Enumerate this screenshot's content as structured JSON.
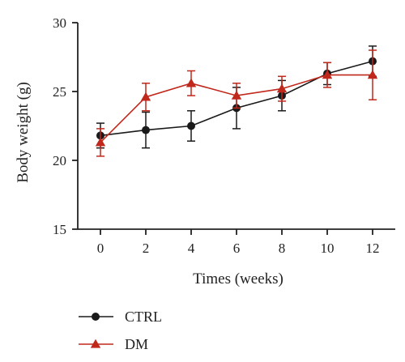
{
  "chart_data": {
    "type": "line",
    "title": "",
    "xlabel": "Times (weeks)",
    "ylabel": "Body weight (g)",
    "x": [
      0,
      2,
      4,
      6,
      8,
      10,
      12
    ],
    "xlim": [
      -1,
      13
    ],
    "ylim": [
      15,
      30
    ],
    "xticks": [
      "0",
      "2",
      "4",
      "6",
      "8",
      "10",
      "12"
    ],
    "yticks": [
      "15",
      "20",
      "25",
      "30"
    ],
    "grid": false,
    "legend_position": "bottom-left",
    "series": [
      {
        "name": "CTRL",
        "marker": "circle",
        "color": "#1a1a1a",
        "values": [
          21.8,
          22.2,
          22.5,
          23.8,
          24.7,
          26.3,
          27.2
        ],
        "errors": [
          0.9,
          1.3,
          1.1,
          1.5,
          1.1,
          0.8,
          1.1
        ]
      },
      {
        "name": "DM",
        "marker": "triangle",
        "color": "#c0281c",
        "values": [
          21.3,
          24.6,
          25.6,
          24.7,
          25.2,
          26.2,
          26.2
        ],
        "errors": [
          1.0,
          1.0,
          0.9,
          0.9,
          0.9,
          0.9,
          1.8
        ]
      }
    ]
  }
}
